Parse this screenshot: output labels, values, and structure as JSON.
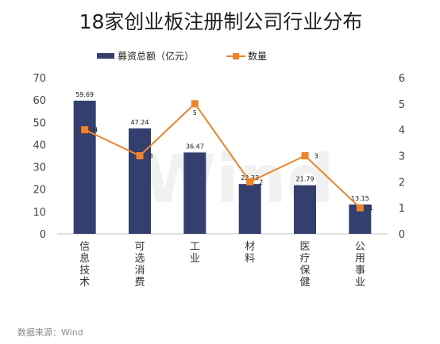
{
  "chart_data": {
    "type": "bar+line",
    "title": "18家创业板注册制公司行业分布",
    "categories": [
      "信息技术",
      "可选消费",
      "工业",
      "材料",
      "医疗保健",
      "公用事业"
    ],
    "series": [
      {
        "name": "募资总额（亿元）",
        "type": "bar",
        "axis": "left",
        "color": "#333f6e",
        "values": [
          59.69,
          47.24,
          36.47,
          22.33,
          21.79,
          13.15
        ]
      },
      {
        "name": "数量",
        "type": "line",
        "axis": "right",
        "color": "#f08427",
        "values": [
          4,
          3,
          5,
          2,
          3,
          1
        ]
      }
    ],
    "y_left": {
      "range": [
        0,
        70
      ],
      "ticks": [
        0,
        10,
        20,
        30,
        40,
        50,
        60,
        70
      ]
    },
    "y_right": {
      "range": [
        0,
        6
      ],
      "ticks": [
        0,
        1,
        2,
        3,
        4,
        5,
        6
      ]
    },
    "legend_position": "top",
    "grid": false,
    "watermark": "Wind",
    "source": "数据来源：Wind"
  }
}
